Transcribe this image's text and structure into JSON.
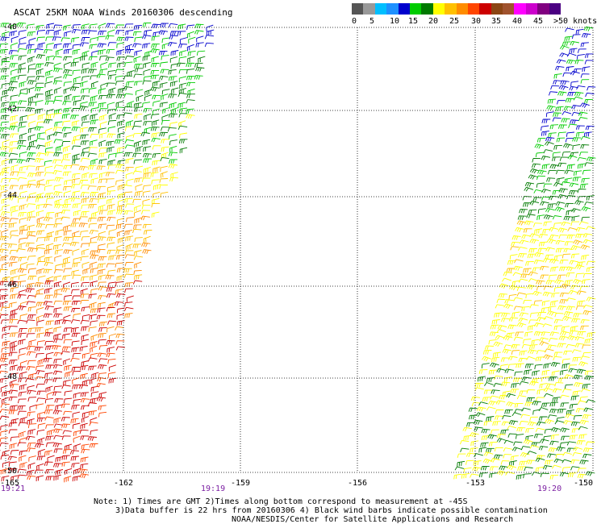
{
  "title": "ASCAT 25KM NOAA Winds 20160306 descending",
  "colorbar": {
    "colors": [
      "#555555",
      "#999999",
      "#00bfff",
      "#1e90ff",
      "#0000cd",
      "#00cc00",
      "#007a00",
      "#ffff00",
      "#ffc000",
      "#ff8c00",
      "#ff4500",
      "#cc0000",
      "#8b4513",
      "#a0522d",
      "#ff00ff",
      "#cc00cc",
      "#800080",
      "#4b0082"
    ],
    "labels": [
      "0",
      "5",
      "10",
      "15",
      "20",
      "25",
      "30",
      "35",
      "40",
      "45",
      ">50 knots"
    ]
  },
  "map": {
    "lon_labels": [
      "-165",
      "-162",
      "-159",
      "-156",
      "-153",
      "-150"
    ],
    "lat_labels": [
      "-40",
      "-42",
      "-44",
      "-46",
      "-48",
      "-50"
    ],
    "time_labels": [
      "19:21",
      "19:19",
      "19:20"
    ]
  },
  "notes": {
    "line1": "Note: 1) Times are GMT 2)Times along bottom correspond to measurement at -45S",
    "line2": "3)Data buffer is 22 hrs from 20160306 4) Black wind barbs indicate possible contamination",
    "line3": "NOAA/NESDIS/Center for Satellite Applications and Research"
  }
}
